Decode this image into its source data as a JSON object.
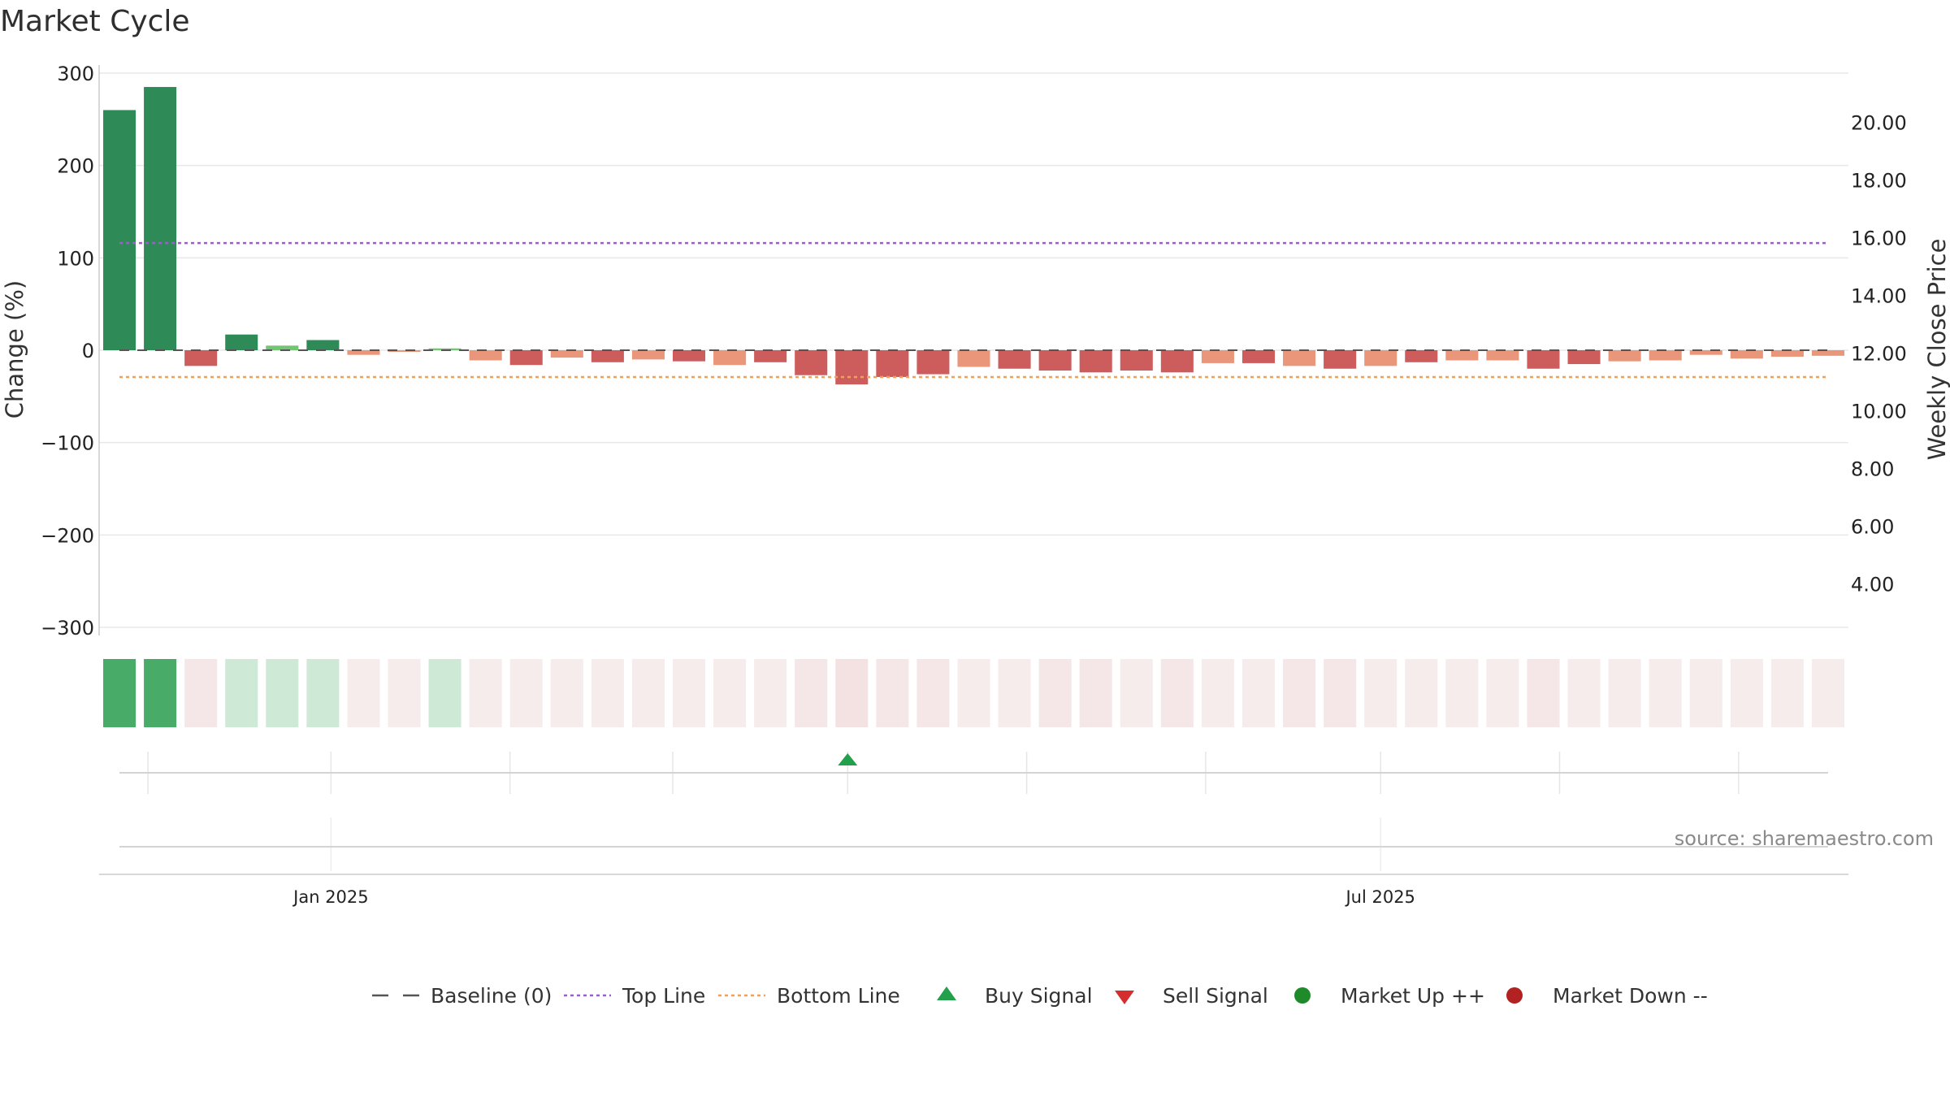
{
  "chart_data": {
    "type": "bar",
    "title": "Market Cycle",
    "ylabel": "Change (%)",
    "y2label": "Weekly Close Price",
    "ylim": [
      -300,
      300
    ],
    "y2lim": [
      2.5,
      21.7
    ],
    "yticks": [
      300,
      200,
      100,
      0,
      -100,
      -200,
      -300
    ],
    "ytick_labels": [
      "300",
      "200",
      "100",
      "0",
      "−100",
      "−200",
      "−300"
    ],
    "y2ticks": [
      20,
      18,
      16,
      14,
      12,
      10,
      8,
      6,
      4
    ],
    "y2tick_labels": [
      "20.00",
      "18.00",
      "16.00",
      "14.00",
      "12.00",
      "10.00",
      "8.00",
      "6.00",
      "4.00"
    ],
    "x_labels": [
      {
        "label": "Jan 2025",
        "week": 5.7
      },
      {
        "label": "Jul 2025",
        "week": 31.5
      }
    ],
    "weeks": 43,
    "values": [
      260,
      285,
      -17,
      17,
      5,
      11,
      -5,
      -1,
      2,
      -11,
      -16,
      -8,
      -13,
      -10,
      -12,
      -16,
      -13,
      -27,
      -37,
      -29,
      -26,
      -18,
      -20,
      -22,
      -24,
      -22,
      -24,
      -14,
      -14,
      -17,
      -20,
      -17,
      -13,
      -11,
      -11,
      -20,
      -15,
      -12,
      -11,
      -5,
      -9,
      -7,
      -6
    ],
    "heat_intensity": [
      0.95,
      0.95,
      0.25,
      0.25,
      0.25,
      0.25,
      0.2,
      0.2,
      0.25,
      0.2,
      0.2,
      0.2,
      0.2,
      0.2,
      0.2,
      0.2,
      0.2,
      0.25,
      0.3,
      0.25,
      0.25,
      0.2,
      0.2,
      0.25,
      0.25,
      0.2,
      0.25,
      0.2,
      0.2,
      0.25,
      0.25,
      0.2,
      0.2,
      0.2,
      0.2,
      0.25,
      0.2,
      0.2,
      0.2,
      0.2,
      0.2,
      0.2,
      0.2
    ],
    "top_line": 116,
    "bottom_line": -29,
    "baseline": 0,
    "buy_signals": [
      {
        "week": 18.4
      }
    ],
    "sell_signals": [],
    "signal_grid_weeks": [
      1.2,
      5.7,
      10.1,
      14.1,
      18.4,
      22.8,
      27.2,
      31.5,
      35.9,
      40.3
    ],
    "legend": [
      {
        "label": "Baseline (0)",
        "marker": "dash",
        "color": "#555555"
      },
      {
        "label": "Top Line",
        "marker": "dotted",
        "color": "#9b5fc6"
      },
      {
        "label": "Bottom Line",
        "marker": "dotted",
        "color": "#f0a058"
      },
      {
        "label": "Buy Signal",
        "marker": "triangle-up",
        "color": "#22a04b"
      },
      {
        "label": "Sell Signal",
        "marker": "triangle-down",
        "color": "#d32f2f"
      },
      {
        "label": "Market Up ++",
        "marker": "circle",
        "color": "#1f8a2a"
      },
      {
        "label": "Market Down --",
        "marker": "circle",
        "color": "#b22222"
      }
    ],
    "source": "source: sharemaestro.com"
  },
  "colors": {
    "up_strong": "#2e8b57",
    "up_light": "#74c476",
    "down_strong": "#cd5c5c",
    "down_light": "#e9967a",
    "heat_up": "#3ea860",
    "heat_down": "#d9a0a0",
    "grid": "#e8e8e8"
  }
}
